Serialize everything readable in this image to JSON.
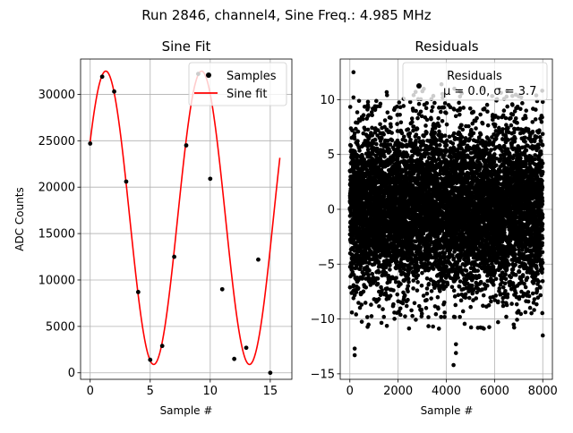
{
  "figure": {
    "suptitle": "Run 2846, channel4, Sine Freq.: 4.985 MHz"
  },
  "chart_data": [
    {
      "type": "line",
      "title": "Sine Fit",
      "xlabel": "Sample #",
      "ylabel": "ADC Counts",
      "xlim": [
        -0.8,
        16.8
      ],
      "ylim": [
        -700,
        33800
      ],
      "xticks": [
        0,
        5,
        10,
        15
      ],
      "yticks": [
        0,
        5000,
        10000,
        15000,
        20000,
        25000,
        30000
      ],
      "grid": true,
      "legend_position": "top-right",
      "legend": [
        {
          "label": "Samples",
          "marker": "dot",
          "color": "#000000"
        },
        {
          "label": "Sine fit",
          "marker": "line",
          "color": "#ff0000"
        }
      ],
      "series": [
        {
          "name": "Samples",
          "kind": "scatter",
          "color": "#000000",
          "x": [
            0,
            1,
            2,
            3,
            4,
            5,
            6,
            7,
            8,
            9,
            10,
            11,
            12,
            13,
            14,
            15
          ],
          "y": [
            24700,
            31900,
            30300,
            20600,
            8700,
            1400,
            2900,
            12500,
            24500,
            32200,
            20900,
            9000,
            1500,
            2700,
            12200,
            0
          ]
        },
        {
          "name": "Sine fit",
          "kind": "line",
          "color": "#ff0000",
          "model": {
            "offset": 16700,
            "amplitude": 15800,
            "period": 7.98,
            "phase_x": 1.3,
            "x_start": 0,
            "x_end": 15.8
          }
        }
      ]
    },
    {
      "type": "scatter",
      "title": "Residuals",
      "xlabel": "Sample #",
      "ylabel": "",
      "xlim": [
        -400,
        8400
      ],
      "ylim": [
        -15.5,
        13.7
      ],
      "xticks": [
        0,
        2000,
        4000,
        6000,
        8000
      ],
      "yticks": [
        -15,
        -10,
        -5,
        0,
        5,
        10
      ],
      "grid": true,
      "legend_position": "top-right",
      "legend": [
        {
          "label": "Residuals",
          "marker": "dot",
          "color": "#000000"
        },
        {
          "label": "μ = 0.0, σ = 3.7",
          "marker": "none",
          "color": "#000000"
        }
      ],
      "series": [
        {
          "name": "Residuals",
          "color": "#000000",
          "n_points": 8000,
          "mean": 0.0,
          "std": 3.7,
          "notable_points": [
            [
              150,
              12.5
            ],
            [
              150,
              10.2
            ],
            [
              200,
              -13.3
            ],
            [
              200,
              -12.7
            ],
            [
              3800,
              11.4
            ],
            [
              4300,
              -14.2
            ],
            [
              4400,
              -13.1
            ],
            [
              4400,
              -12.3
            ],
            [
              8000,
              9.8
            ],
            [
              8000,
              -11.5
            ]
          ]
        }
      ]
    }
  ]
}
